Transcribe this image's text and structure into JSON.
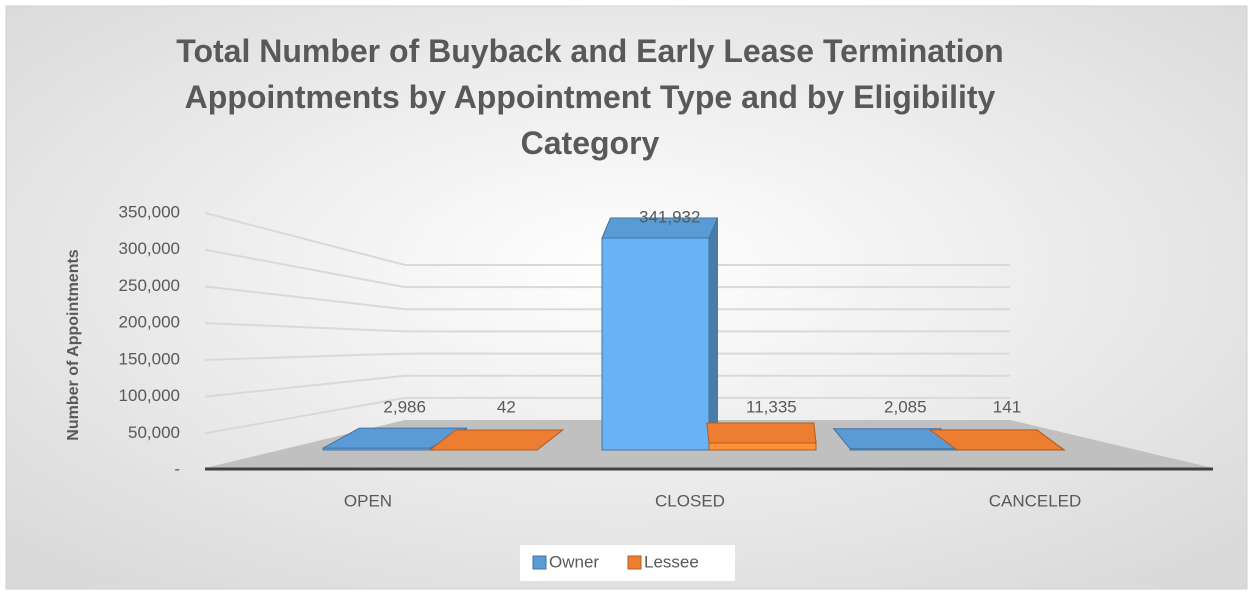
{
  "chart_data": {
    "type": "bar",
    "title": "Total Number of Buyback and Early Lease Termination Appointments by Appointment Type and by Eligibility Category",
    "y_label": "Number of Appointments",
    "categories": [
      "OPEN",
      "CLOSED",
      "CANCELED"
    ],
    "series": [
      {
        "name": "Owner",
        "color": "#5b9bd5",
        "values": [
          2986,
          341932,
          2085
        ],
        "value_labels": [
          "2,986",
          "341,932",
          "2,085"
        ]
      },
      {
        "name": "Lessee",
        "color": "#ed7d31",
        "values": [
          42,
          11335,
          141
        ],
        "value_labels": [
          "42",
          "11,335",
          "141"
        ]
      }
    ],
    "ylim": [
      0,
      350000
    ],
    "yticks": [
      {
        "value": 0,
        "label": "-"
      },
      {
        "value": 50000,
        "label": "50,000"
      },
      {
        "value": 100000,
        "label": "100,000"
      },
      {
        "value": 150000,
        "label": "150,000"
      },
      {
        "value": 200000,
        "label": "200,000"
      },
      {
        "value": 250000,
        "label": "250,000"
      },
      {
        "value": 300000,
        "label": "300,000"
      },
      {
        "value": 350000,
        "label": "350,000"
      }
    ],
    "grid": true,
    "legend": "bottom"
  }
}
